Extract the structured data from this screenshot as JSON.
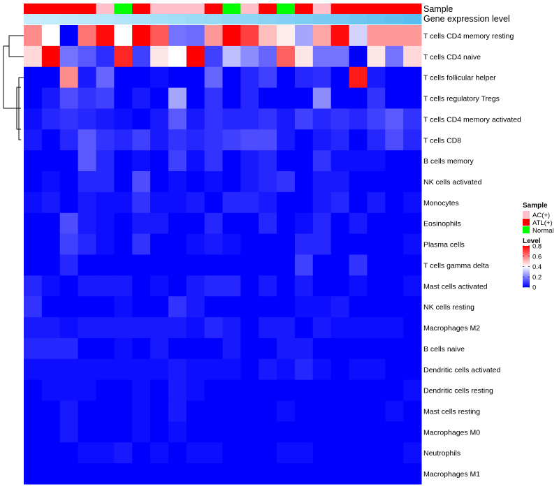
{
  "chart_data": {
    "type": "heatmap",
    "title": "",
    "annotation_tracks": [
      {
        "name": "Sample"
      },
      {
        "name": "Gene expression level"
      }
    ],
    "sample_groups": [
      "ATL(+)",
      "ATL(+)",
      "ATL(+)",
      "ATL(+)",
      "AC(+)",
      "Normal",
      "ATL(+)",
      "AC(+)",
      "AC(+)",
      "AC(+)",
      "ATL(+)",
      "Normal",
      "AC(+)",
      "ATL(+)",
      "Normal",
      "ATL(+)",
      "AC(+)",
      "ATL(+)",
      "ATL(+)",
      "ATL(+)",
      "ATL(+)",
      "ATL(+)"
    ],
    "expression_level": [
      0.02,
      0.05,
      0.08,
      0.12,
      0.16,
      0.2,
      0.25,
      0.3,
      0.34,
      0.38,
      0.42,
      0.46,
      0.5,
      0.55,
      0.6,
      0.64,
      0.68,
      0.72,
      0.78,
      0.84,
      0.9,
      0.96
    ],
    "rows": [
      {
        "label": "T cells CD4 memory resting",
        "values": [
          0.58,
          0.4,
          0.0,
          0.62,
          0.78,
          0.4,
          0.8,
          0.66,
          0.18,
          0.17,
          0.56,
          0.8,
          0.7,
          0.5,
          0.43,
          0.26,
          0.54,
          0.78,
          0.33,
          0.56,
          0.56,
          0.56
        ]
      },
      {
        "label": "T cells CD4 naive",
        "values": [
          0.46,
          0.8,
          0.18,
          0.14,
          0.07,
          0.74,
          0.1,
          0.44,
          0.4,
          0.8,
          0.1,
          0.3,
          0.22,
          0.16,
          0.65,
          0.44,
          0.18,
          0.18,
          0.0,
          0.44,
          0.18,
          0.46
        ]
      },
      {
        "label": "T cells follicular helper",
        "values": [
          0.0,
          0.0,
          0.58,
          0.04,
          0.16,
          0.0,
          0.0,
          0.02,
          0.0,
          0.0,
          0.16,
          0.0,
          0.06,
          0.1,
          0.0,
          0.06,
          0.07,
          0.0,
          0.76,
          0.04,
          0.0,
          0.0
        ]
      },
      {
        "label": "T cells regulatory  Tregs",
        "values": [
          0.0,
          0.04,
          0.12,
          0.08,
          0.1,
          0.0,
          0.04,
          0.0,
          0.26,
          0.0,
          0.08,
          0.0,
          0.06,
          0.0,
          0.0,
          0.0,
          0.22,
          0.0,
          0.0,
          0.08,
          0.0,
          0.0
        ]
      },
      {
        "label": "T cells CD4 memory activated",
        "values": [
          0.02,
          0.06,
          0.08,
          0.06,
          0.04,
          0.02,
          0.0,
          0.04,
          0.14,
          0.04,
          0.08,
          0.06,
          0.06,
          0.08,
          0.04,
          0.1,
          0.06,
          0.08,
          0.06,
          0.1,
          0.14,
          0.08
        ]
      },
      {
        "label": "T cells CD8",
        "values": [
          0.04,
          0.0,
          0.06,
          0.14,
          0.08,
          0.06,
          0.1,
          0.04,
          0.08,
          0.06,
          0.08,
          0.1,
          0.12,
          0.12,
          0.04,
          0.0,
          0.04,
          0.06,
          0.0,
          0.06,
          0.12,
          0.06
        ]
      },
      {
        "label": "B cells memory",
        "values": [
          0.0,
          0.0,
          0.0,
          0.14,
          0.06,
          0.0,
          0.02,
          0.0,
          0.1,
          0.02,
          0.08,
          0.0,
          0.04,
          0.06,
          0.0,
          0.0,
          0.08,
          0.02,
          0.02,
          0.02,
          0.0,
          0.0
        ]
      },
      {
        "label": "NK cells activated",
        "values": [
          0.0,
          0.02,
          0.0,
          0.06,
          0.06,
          0.0,
          0.12,
          0.0,
          0.02,
          0.0,
          0.02,
          0.0,
          0.04,
          0.06,
          0.08,
          0.0,
          0.04,
          0.04,
          0.0,
          0.0,
          0.0,
          0.0
        ]
      },
      {
        "label": "Monocytes",
        "values": [
          0.02,
          0.04,
          0.0,
          0.04,
          0.02,
          0.02,
          0.08,
          0.02,
          0.02,
          0.04,
          0.0,
          0.06,
          0.06,
          0.04,
          0.0,
          0.0,
          0.04,
          0.06,
          0.0,
          0.04,
          0.0,
          0.02
        ]
      },
      {
        "label": "Eosinophils",
        "values": [
          0.0,
          0.0,
          0.12,
          0.04,
          0.02,
          0.0,
          0.04,
          0.04,
          0.0,
          0.0,
          0.06,
          0.0,
          0.0,
          0.06,
          0.0,
          0.02,
          0.06,
          0.0,
          0.04,
          0.0,
          0.0,
          0.0
        ]
      },
      {
        "label": "Plasma cells",
        "values": [
          0.0,
          0.0,
          0.1,
          0.06,
          0.02,
          0.0,
          0.08,
          0.0,
          0.0,
          0.02,
          0.04,
          0.02,
          0.0,
          0.0,
          0.0,
          0.06,
          0.06,
          0.0,
          0.0,
          0.0,
          0.0,
          0.02
        ]
      },
      {
        "label": "T cells gamma delta",
        "values": [
          0.0,
          0.0,
          0.06,
          0.0,
          0.0,
          0.0,
          0.0,
          0.0,
          0.0,
          0.0,
          0.0,
          0.0,
          0.0,
          0.0,
          0.0,
          0.1,
          0.0,
          0.0,
          0.08,
          0.0,
          0.0,
          0.0
        ]
      },
      {
        "label": "Mast cells activated",
        "values": [
          0.06,
          0.02,
          0.0,
          0.04,
          0.04,
          0.04,
          0.0,
          0.02,
          0.0,
          0.04,
          0.06,
          0.06,
          0.0,
          0.04,
          0.0,
          0.04,
          0.0,
          0.0,
          0.02,
          0.0,
          0.0,
          0.02
        ]
      },
      {
        "label": "NK cells resting",
        "values": [
          0.08,
          0.0,
          0.0,
          0.0,
          0.0,
          0.02,
          0.0,
          0.0,
          0.08,
          0.04,
          0.0,
          0.0,
          0.0,
          0.0,
          0.0,
          0.02,
          0.02,
          0.04,
          0.0,
          0.0,
          0.0,
          0.0
        ]
      },
      {
        "label": "Macrophages M2",
        "values": [
          0.04,
          0.04,
          0.02,
          0.04,
          0.04,
          0.04,
          0.04,
          0.04,
          0.04,
          0.02,
          0.06,
          0.04,
          0.0,
          0.04,
          0.04,
          0.0,
          0.04,
          0.02,
          0.02,
          0.02,
          0.02,
          0.0
        ]
      },
      {
        "label": "B cells naive",
        "values": [
          0.06,
          0.06,
          0.06,
          0.0,
          0.0,
          0.02,
          0.0,
          0.04,
          0.0,
          0.0,
          0.0,
          0.04,
          0.0,
          0.0,
          0.04,
          0.04,
          0.0,
          0.0,
          0.0,
          0.0,
          0.0,
          0.0
        ]
      },
      {
        "label": "Dendritic cells activated",
        "values": [
          0.02,
          0.02,
          0.02,
          0.02,
          0.02,
          0.02,
          0.02,
          0.02,
          0.04,
          0.02,
          0.02,
          0.02,
          0.0,
          0.04,
          0.02,
          0.06,
          0.02,
          0.0,
          0.02,
          0.02,
          0.0,
          0.0
        ]
      },
      {
        "label": "Dendritic cells resting",
        "values": [
          0.0,
          0.02,
          0.02,
          0.02,
          0.0,
          0.0,
          0.02,
          0.0,
          0.04,
          0.02,
          0.0,
          0.0,
          0.0,
          0.0,
          0.0,
          0.0,
          0.0,
          0.0,
          0.0,
          0.0,
          0.0,
          0.02
        ]
      },
      {
        "label": "Mast cells resting",
        "values": [
          0.0,
          0.0,
          0.04,
          0.0,
          0.0,
          0.0,
          0.02,
          0.0,
          0.04,
          0.0,
          0.0,
          0.0,
          0.0,
          0.0,
          0.02,
          0.0,
          0.0,
          0.0,
          0.0,
          0.0,
          0.02,
          0.0
        ]
      },
      {
        "label": "Macrophages M0",
        "values": [
          0.0,
          0.0,
          0.04,
          0.0,
          0.0,
          0.0,
          0.02,
          0.0,
          0.02,
          0.0,
          0.0,
          0.0,
          0.0,
          0.0,
          0.0,
          0.0,
          0.0,
          0.0,
          0.0,
          0.0,
          0.0,
          0.0
        ]
      },
      {
        "label": "Neutrophils",
        "values": [
          0.0,
          0.0,
          0.0,
          0.02,
          0.02,
          0.04,
          0.0,
          0.02,
          0.0,
          0.02,
          0.02,
          0.0,
          0.0,
          0.0,
          0.02,
          0.02,
          0.0,
          0.0,
          0.0,
          0.0,
          0.0,
          0.02
        ]
      },
      {
        "label": "Macrophages M1",
        "values": [
          0.0,
          0.0,
          0.0,
          0.0,
          0.0,
          0.0,
          0.0,
          0.0,
          0.0,
          0.0,
          0.0,
          0.0,
          0.0,
          0.0,
          0.0,
          0.0,
          0.0,
          0.0,
          0.0,
          0.0,
          0.0,
          0.0
        ]
      }
    ],
    "color_scale": {
      "name": "Level",
      "range": [
        0,
        0.8
      ],
      "ticks": [
        "0.8",
        "0.6",
        "0.4",
        "0.2",
        "0"
      ],
      "tick_values": [
        0.8,
        0.6,
        0.4,
        0.2,
        0.0
      ],
      "low_color": "#0000ff",
      "mid_color": "#ffffff",
      "high_color": "#ff0000"
    },
    "sample_legend": {
      "title": "Sample",
      "entries": [
        {
          "label": "AC(+)",
          "color": "#ffc0cb"
        },
        {
          "label": "ATL(+)",
          "color": "#ff0000"
        },
        {
          "label": "Normal",
          "color": "#00ff00"
        }
      ]
    },
    "expression_colors": {
      "low": "#c8eefc",
      "high": "#55bbee"
    }
  }
}
